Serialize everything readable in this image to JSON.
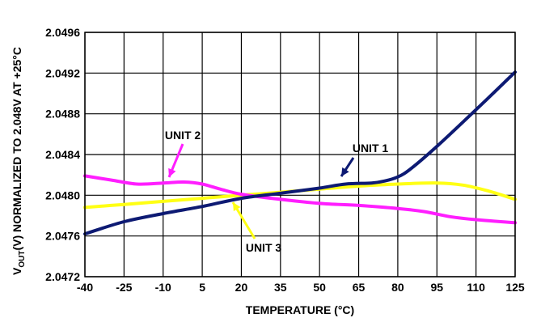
{
  "chart_data": {
    "type": "line",
    "title": "",
    "xlabel": "TEMPERATURE (°C)",
    "ylabel": {
      "prefix": "V",
      "subscript": "OUT",
      "suffix": "(V) NORMALIZED TO 2.048V AT +25°C"
    },
    "x_ticks": [
      -40,
      -25,
      -10,
      5,
      20,
      35,
      50,
      65,
      80,
      95,
      110,
      125
    ],
    "y_ticks": [
      "2.0472",
      "2.0476",
      "2.0480",
      "2.0484",
      "2.0488",
      "2.0492",
      "2.0496"
    ],
    "xlim": [
      -40,
      125
    ],
    "ylim": [
      2.0472,
      2.0496
    ],
    "grid": true,
    "series": [
      {
        "name": "UNIT 1",
        "color": "#0d1a73",
        "x": [
          -40,
          -25,
          -10,
          5,
          20,
          35,
          50,
          60,
          70,
          75,
          80,
          85,
          95,
          110,
          125
        ],
        "y": [
          2.04762,
          2.04774,
          2.04782,
          2.04789,
          2.04797,
          2.04802,
          2.04807,
          2.04811,
          2.04812,
          2.04814,
          2.04818,
          2.04826,
          2.04848,
          2.04884,
          2.04921
        ]
      },
      {
        "name": "UNIT 2",
        "color": "#ff1eff",
        "x": [
          -40,
          -30,
          -20,
          -10,
          -2,
          5,
          12,
          20,
          35,
          50,
          65,
          80,
          90,
          100,
          110,
          125
        ],
        "y": [
          2.04819,
          2.04815,
          2.04811,
          2.04812,
          2.04813,
          2.04811,
          2.04806,
          2.04801,
          2.04796,
          2.04792,
          2.0479,
          2.04787,
          2.04784,
          2.04779,
          2.04776,
          2.04773
        ]
      },
      {
        "name": "UNIT 3",
        "color": "#ffff14",
        "x": [
          -40,
          -25,
          -10,
          5,
          20,
          35,
          50,
          65,
          80,
          95,
          105,
          115,
          125
        ],
        "y": [
          2.04788,
          2.04791,
          2.04794,
          2.04797,
          2.048,
          2.04803,
          2.04806,
          2.04809,
          2.04811,
          2.04812,
          2.0481,
          2.04804,
          2.04796
        ]
      }
    ],
    "annotations": [
      {
        "text": "UNIT 1",
        "series": "UNIT 1"
      },
      {
        "text": "UNIT 2",
        "series": "UNIT 2"
      },
      {
        "text": "UNIT 3",
        "series": "UNIT 3"
      }
    ]
  }
}
